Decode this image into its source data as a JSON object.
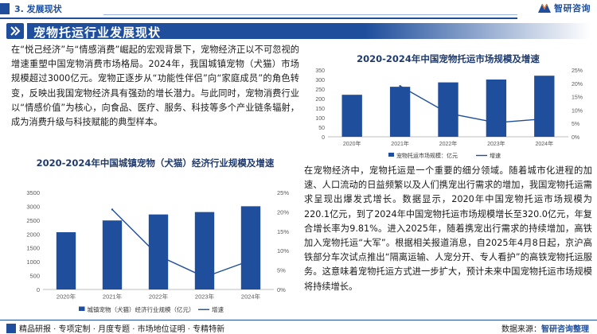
{
  "header": {
    "section_label": "3. 发展现状",
    "brand_name": "智研咨询"
  },
  "title": "宠物托运行业发展现状",
  "paragraphs": {
    "left": "在“悦己经济”与“情感消费”崛起的宏观背景下，宠物经济正以不可忽视的增速重塑中国宠物消费市场格局。2024年，我国城镇宠物（犬猫）市场规模超过3000亿元。宠物正逐步从“功能性伴侣”向“家庭成员”的角色转变，反映出我国宠物经济具有强劲的增长潜力。与此同时，宠物消费行业以“情感价值”为核心，向食品、医疗、服务、科技等多个产业链条辐射，成为消费升级与科技赋能的典型样本。",
    "right": "在宠物经济中，宠物托运是一个重要的细分领域。随着城市化进程的加速、人口流动的日益频繁以及人们携宠出行需求的增加，我国宠物托运需求呈现出爆发式增长。数据显示，2020年中国宠物托运市场规模为220.1亿元，到了2024年中国宠物托运市场规模增长至320.0亿元，年复合增长率为9.81%。进入2025年，随着携宠出行需求的持续增加，高铁加入宠物托运“大军”。根据相关报道消息，自2025年4月8日起，京沪高铁部分车次试点推出“隔离运输、人宠分开、专人看护”的高铁宠物托运服务。这意味着宠物托运方式进一步扩大，预计未来中国宠物托运市场规模将持续增长。"
  },
  "colors": {
    "bar": "#1f4e9c",
    "line": "#1f4e9c",
    "axis": "#bfbfbf",
    "text": "#595959"
  },
  "chart_data": [
    {
      "id": "pet-transport",
      "type": "bar",
      "title": "2020-2024年中国宠物托运市场规模及增速",
      "categories": [
        "2020年",
        "2021年",
        "2022年",
        "2023年",
        "2024年"
      ],
      "series": [
        {
          "name": "宠物托运市场规模：亿元",
          "kind": "bar",
          "axis": "left",
          "values": [
            220.1,
            262,
            285,
            300,
            320.0
          ]
        },
        {
          "name": "增速",
          "kind": "line",
          "axis": "right",
          "values": [
            null,
            19.0,
            8.8,
            5.3,
            6.7
          ]
        }
      ],
      "left_axis": {
        "ticks": [
          "0",
          "50",
          "100",
          "150",
          "200",
          "250",
          "300",
          "350"
        ],
        "ylim": [
          0,
          350
        ]
      },
      "right_axis": {
        "ticks": [
          "0%",
          "5%",
          "10%",
          "15%",
          "20%",
          "25%"
        ],
        "ylim": [
          0,
          25
        ]
      }
    },
    {
      "id": "urban-pet",
      "type": "bar",
      "title": "2020-2024年中国城镇宠物（犬猫）经济行业规模及增速",
      "categories": [
        "2020年",
        "2021年",
        "2022年",
        "2023年",
        "2024年"
      ],
      "series": [
        {
          "name": "城镇宠物（犬猫）经济行业规模（亿元）",
          "kind": "bar",
          "axis": "left",
          "values": [
            2065,
            2490,
            2706,
            2793,
            3002
          ]
        },
        {
          "name": "增速",
          "kind": "line",
          "axis": "right",
          "values": [
            null,
            20.6,
            8.7,
            3.2,
            7.5
          ]
        }
      ],
      "left_axis": {
        "ticks": [
          "0",
          "500",
          "1000",
          "1500",
          "2000",
          "2500",
          "3000",
          "3500"
        ],
        "ylim": [
          0,
          3500
        ]
      },
      "right_axis": {
        "ticks": [
          "0%",
          "5%",
          "10%",
          "15%",
          "20%",
          "25%"
        ],
        "ylim": [
          0,
          25
        ]
      }
    }
  ],
  "footer": {
    "left": "精品研报 · 专项定制 · 月度专题 · 市场地位证明 · 专精特新",
    "right_prefix": "数据来源：",
    "right_brand": "智研咨询整理"
  }
}
